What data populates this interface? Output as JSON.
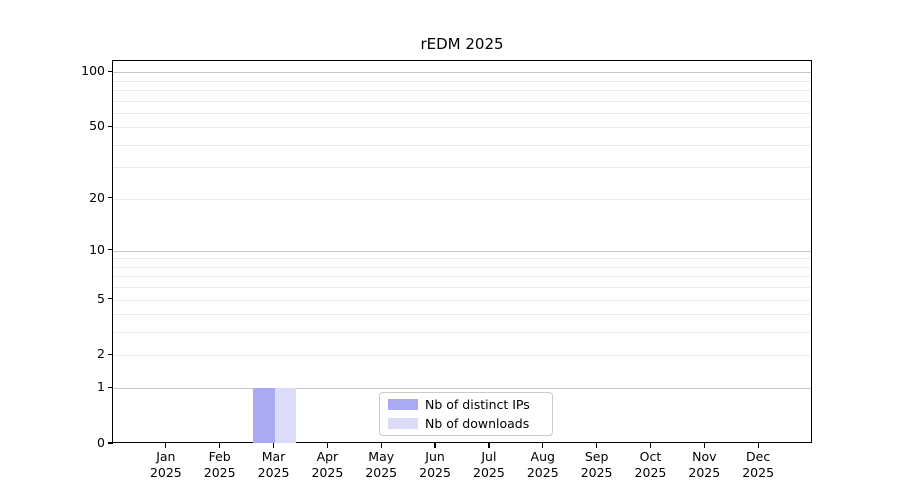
{
  "chart_data": {
    "type": "bar",
    "title": "rEDM 2025",
    "categories": [
      "Jan",
      "Feb",
      "Mar",
      "Apr",
      "May",
      "Jun",
      "Jul",
      "Aug",
      "Sep",
      "Oct",
      "Nov",
      "Dec"
    ],
    "x_tick_second_line": "2025",
    "series": [
      {
        "name": "Nb of distinct IPs",
        "color": "#aaaaf2",
        "values": [
          0,
          0,
          1,
          0,
          0,
          0,
          0,
          0,
          0,
          0,
          0,
          0
        ]
      },
      {
        "name": "Nb of downloads",
        "color": "#dcdcf8",
        "values": [
          0,
          0,
          1,
          0,
          0,
          0,
          0,
          0,
          0,
          0,
          0,
          0
        ]
      }
    ],
    "y_axis": {
      "scale": "log1p",
      "ylim": [
        0,
        115
      ],
      "tick_values": [
        100,
        50,
        20,
        10,
        5,
        2,
        1,
        0
      ],
      "tick_labels": [
        "100",
        "50",
        "20",
        "10",
        "5",
        "2",
        "1",
        "0"
      ],
      "major_grid_values": [
        1,
        10,
        100
      ],
      "minor_grid_values": [
        2,
        3,
        4,
        5,
        6,
        7,
        8,
        9,
        20,
        30,
        40,
        50,
        60,
        70,
        80,
        90
      ]
    },
    "legend": {
      "entries": [
        "Nb of distinct IPs",
        "Nb of downloads"
      ],
      "position": "lower center"
    },
    "colors": {
      "major_grid": "#c8c8c8",
      "minor_grid": "#eaeaea",
      "spine": "#000000",
      "background": "#ffffff"
    },
    "grid": true
  }
}
